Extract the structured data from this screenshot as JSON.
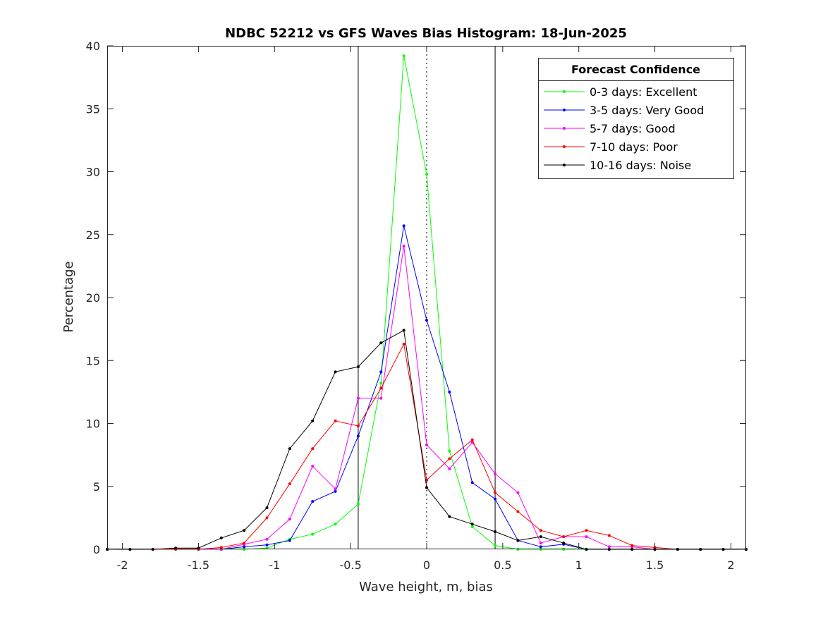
{
  "chart_data": {
    "type": "line",
    "title": "NDBC 52212 vs GFS Waves Bias Histogram: 18-Jun-2025",
    "xlabel": "Wave height, m, bias",
    "ylabel": "Percentage",
    "xlim": [
      -2.1,
      2.1
    ],
    "ylim": [
      0,
      40
    ],
    "xticks": [
      -2,
      -1.5,
      -1,
      -0.5,
      0,
      0.5,
      1,
      1.5,
      2
    ],
    "xtick_labels": [
      "-2",
      "-1.5",
      "-1",
      "-0.5",
      "0",
      "0.5",
      "1",
      "1.5",
      "2"
    ],
    "yticks": [
      0,
      5,
      10,
      15,
      20,
      25,
      30,
      35,
      40
    ],
    "ytick_labels": [
      "0",
      "5",
      "10",
      "15",
      "20",
      "25",
      "30",
      "35",
      "40"
    ],
    "grid": false,
    "legend": {
      "title": "Forecast Confidence",
      "placement": "top-right"
    },
    "reference_lines": [
      {
        "x": -0.45,
        "style": "solid"
      },
      {
        "x": 0,
        "style": "dotted"
      },
      {
        "x": 0.45,
        "style": "solid"
      }
    ],
    "x": [
      -2.1,
      -1.95,
      -1.8,
      -1.65,
      -1.5,
      -1.35,
      -1.2,
      -1.05,
      -0.9,
      -0.75,
      -0.6,
      -0.45,
      -0.3,
      -0.15,
      0,
      0.15,
      0.3,
      0.45,
      0.6,
      0.75,
      0.9,
      1.05,
      1.2,
      1.35,
      1.5,
      1.65,
      1.8,
      1.95,
      2.1
    ],
    "series": [
      {
        "name": "0-3 days: Excellent",
        "color": "#00ff00",
        "values": [
          0,
          0,
          0,
          0,
          0,
          0,
          0,
          0.1,
          0.8,
          1.2,
          2.0,
          3.6,
          13.2,
          39.2,
          29.8,
          7.8,
          1.8,
          0.3,
          0,
          0,
          0,
          0,
          0,
          0,
          0,
          0,
          0,
          0,
          0
        ]
      },
      {
        "name": "3-5 days: Very Good",
        "color": "#0000ff",
        "values": [
          0,
          0,
          0,
          0,
          0,
          0,
          0.2,
          0.35,
          0.7,
          3.8,
          4.6,
          9.0,
          14.1,
          25.7,
          18.2,
          12.5,
          5.3,
          4.0,
          0.7,
          0.2,
          0.4,
          0,
          0,
          0,
          0,
          0,
          0,
          0,
          0
        ]
      },
      {
        "name": "5-7 days: Good",
        "color": "#ff00ff",
        "values": [
          0,
          0,
          0,
          0,
          0,
          0,
          0.4,
          0.8,
          2.4,
          6.6,
          4.8,
          12.0,
          12.0,
          24.1,
          8.3,
          6.4,
          8.5,
          6.0,
          4.5,
          0.5,
          1.0,
          1.0,
          0.2,
          0.2,
          0,
          0,
          0,
          0,
          0
        ]
      },
      {
        "name": "7-10 days: Poor",
        "color": "#ff0000",
        "values": [
          0,
          0,
          0,
          0,
          0,
          0.15,
          0.5,
          2.5,
          5.2,
          8.0,
          10.2,
          9.8,
          12.8,
          16.3,
          5.5,
          7.2,
          8.7,
          4.5,
          3.0,
          1.5,
          1.0,
          1.5,
          1.1,
          0.3,
          0.15,
          0,
          0,
          0,
          0
        ]
      },
      {
        "name": "10-16 days: Noise",
        "color": "#000000",
        "values": [
          0,
          0,
          0,
          0.1,
          0.1,
          0.9,
          1.5,
          3.3,
          8.0,
          10.2,
          14.1,
          14.5,
          16.4,
          17.4,
          4.9,
          2.6,
          2.0,
          1.4,
          0.7,
          1.0,
          0.5,
          0,
          0,
          0,
          0,
          0,
          0,
          0,
          0
        ]
      }
    ]
  }
}
